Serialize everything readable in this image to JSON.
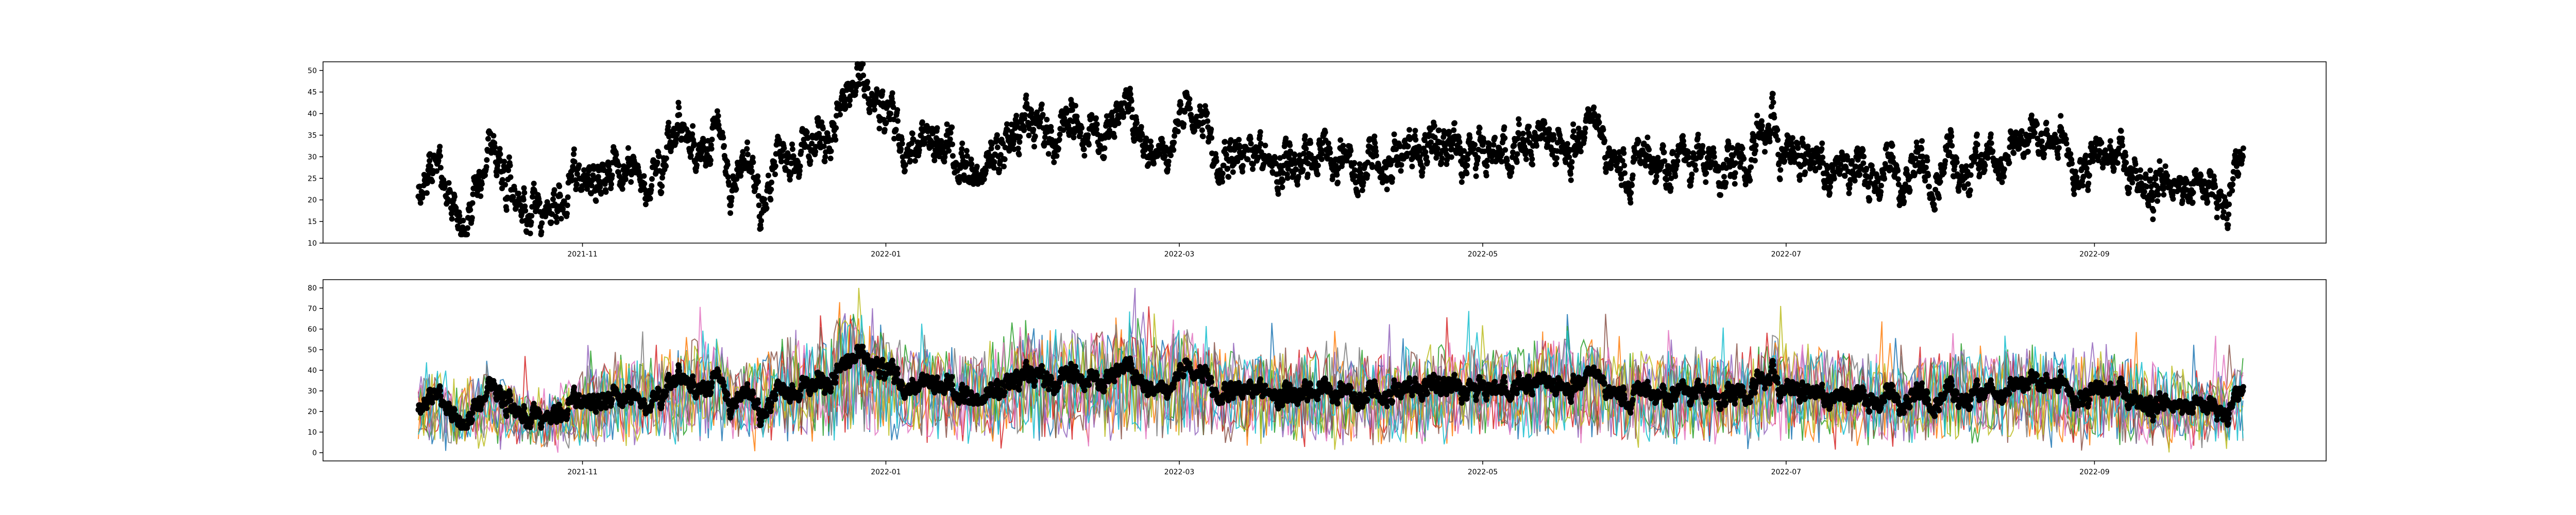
{
  "chart_data": [
    {
      "type": "scatter",
      "title": "",
      "xlabel": "",
      "ylabel": "",
      "x_range": [
        "2021-09-29",
        "2022-10-01"
      ],
      "x_ticks": [
        {
          "date": "2021-11-01",
          "label": "2021-11"
        },
        {
          "date": "2022-01-01",
          "label": "2022-01"
        },
        {
          "date": "2022-03-01",
          "label": "2022-03"
        },
        {
          "date": "2022-05-01",
          "label": "2022-05"
        },
        {
          "date": "2022-07-01",
          "label": "2022-07"
        },
        {
          "date": "2022-09-01",
          "label": "2022-09"
        }
      ],
      "ylim": [
        10,
        52
      ],
      "y_ticks": [
        10,
        15,
        20,
        25,
        30,
        35,
        40,
        45,
        50
      ],
      "grid": false,
      "legend": "none",
      "marker_color": "#000000",
      "series": [
        {
          "points": [
            [
              "2021-09-29",
              20
            ],
            [
              "2021-10-01",
              23
            ],
            [
              "2021-10-04",
              27
            ],
            [
              "2021-10-07",
              18
            ],
            [
              "2021-10-10",
              22
            ],
            [
              "2021-10-14",
              25
            ],
            [
              "2021-10-18",
              20
            ],
            [
              "2021-10-22",
              18
            ],
            [
              "2021-10-26",
              17
            ],
            [
              "2021-11-01",
              25
            ],
            [
              "2021-11-08",
              27
            ],
            [
              "2021-11-15",
              28
            ],
            [
              "2021-11-22",
              33
            ],
            [
              "2021-11-28",
              35
            ],
            [
              "2021-12-01",
              25
            ],
            [
              "2021-12-07",
              27
            ],
            [
              "2021-12-12",
              35
            ],
            [
              "2021-12-18",
              33
            ],
            [
              "2021-12-22",
              40
            ],
            [
              "2021-12-26",
              45
            ],
            [
              "2022-01-01",
              36
            ],
            [
              "2022-01-08",
              32
            ],
            [
              "2022-01-15",
              30
            ],
            [
              "2022-01-22",
              30
            ],
            [
              "2022-01-29",
              37
            ],
            [
              "2022-02-05",
              37
            ],
            [
              "2022-02-12",
              35
            ],
            [
              "2022-02-19",
              40
            ],
            [
              "2022-02-26",
              33
            ],
            [
              "2022-03-03",
              40
            ],
            [
              "2022-03-08",
              32
            ],
            [
              "2022-03-15",
              30
            ],
            [
              "2022-03-22",
              30
            ],
            [
              "2022-03-29",
              32
            ],
            [
              "2022-04-05",
              27
            ],
            [
              "2022-04-12",
              30
            ],
            [
              "2022-04-19",
              32
            ],
            [
              "2022-04-26",
              30
            ],
            [
              "2022-05-03",
              30
            ],
            [
              "2022-05-10",
              33
            ],
            [
              "2022-05-17",
              35
            ],
            [
              "2022-05-24",
              34
            ],
            [
              "2022-05-31",
              30
            ],
            [
              "2022-06-07",
              30
            ],
            [
              "2022-06-14",
              29
            ],
            [
              "2022-06-21",
              29
            ],
            [
              "2022-06-28",
              35
            ],
            [
              "2022-07-05",
              32
            ],
            [
              "2022-07-12",
              29
            ],
            [
              "2022-07-19",
              27
            ],
            [
              "2022-07-26",
              25
            ],
            [
              "2022-08-02",
              33
            ],
            [
              "2022-08-09",
              30
            ],
            [
              "2022-08-16",
              32
            ],
            [
              "2022-08-23",
              30
            ],
            [
              "2022-08-30",
              28
            ],
            [
              "2022-09-06",
              29
            ],
            [
              "2022-09-13",
              26
            ],
            [
              "2022-09-20",
              22
            ],
            [
              "2022-09-27",
              22
            ],
            [
              "2022-10-01",
              28
            ]
          ]
        }
      ]
    },
    {
      "type": "line",
      "title": "",
      "xlabel": "",
      "ylabel": "",
      "x_range": [
        "2021-09-29",
        "2022-10-01"
      ],
      "x_ticks": [
        {
          "date": "2021-11-01",
          "label": "2021-11"
        },
        {
          "date": "2022-01-01",
          "label": "2022-01"
        },
        {
          "date": "2022-03-01",
          "label": "2022-03"
        },
        {
          "date": "2022-05-01",
          "label": "2022-05"
        },
        {
          "date": "2022-07-01",
          "label": "2022-07"
        },
        {
          "date": "2022-09-01",
          "label": "2022-09"
        }
      ],
      "ylim": [
        -4,
        84
      ],
      "y_ticks": [
        0,
        10,
        20,
        30,
        40,
        50,
        60,
        70,
        80
      ],
      "grid": false,
      "legend": "none",
      "series_colors": [
        "#1f77b4",
        "#ff7f0e",
        "#2ca02c",
        "#d62728",
        "#9467bd",
        "#8c564b",
        "#e377c2",
        "#7f7f7f",
        "#bcbd22",
        "#17becf"
      ],
      "overlay_marker_color": "#000000",
      "overlay_note_values_same_as_top_panel": true
    }
  ]
}
